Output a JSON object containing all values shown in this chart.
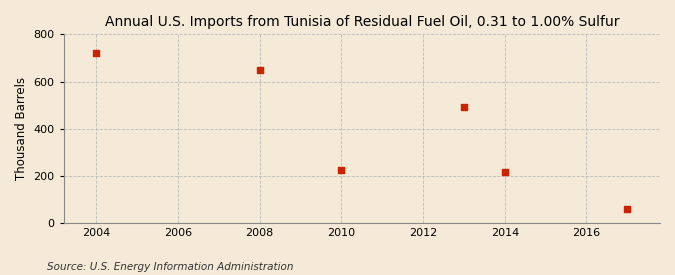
{
  "title": "Annual U.S. Imports from Tunisia of Residual Fuel Oil, 0.31 to 1.00% Sulfur",
  "ylabel": "Thousand Barrels",
  "source": "Source: U.S. Energy Information Administration",
  "data_years": [
    2004,
    2008,
    2010,
    2013,
    2014,
    2017
  ],
  "data_values": [
    720,
    648,
    225,
    493,
    218,
    62
  ],
  "marker_color": "#cc2200",
  "marker": "s",
  "marker_size": 4,
  "xlim": [
    2003.2,
    2017.8
  ],
  "ylim": [
    0,
    800
  ],
  "yticks": [
    0,
    200,
    400,
    600,
    800
  ],
  "xticks": [
    2004,
    2006,
    2008,
    2010,
    2012,
    2014,
    2016
  ],
  "background_color": "#f5ead8",
  "plot_background_color": "#f5ead8",
  "grid_color": "#bbbbbb",
  "title_fontsize": 10,
  "ylabel_fontsize": 8.5,
  "tick_fontsize": 8,
  "source_fontsize": 7.5
}
